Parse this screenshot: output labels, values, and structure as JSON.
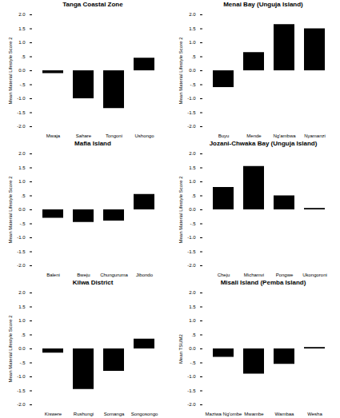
{
  "chart_data": [
    {
      "type": "bar",
      "title": "Tanga Coastal Zone",
      "y_label": "Mean Material Lifestyle Score 2",
      "categories": [
        "Mwaja",
        "Sahare",
        "Tongoni",
        "Ushongo"
      ],
      "values": [
        -0.1,
        -1.0,
        -1.35,
        0.45
      ],
      "color": "#000000",
      "ylim": [
        -2,
        2
      ],
      "yticks": [
        {
          "value": -2,
          "label": "-2.0"
        },
        {
          "value": -1.5,
          "label": "-1.5"
        },
        {
          "value": -1,
          "label": "-1.0"
        },
        {
          "value": -0.5,
          "label": "-.5"
        },
        {
          "value": 0,
          "label": "0.0"
        },
        {
          "value": 0.5,
          "label": ".5"
        },
        {
          "value": 1,
          "label": "1.0"
        },
        {
          "value": 1.5,
          "label": "1.5"
        },
        {
          "value": 2,
          "label": "2.0"
        }
      ]
    },
    {
      "type": "bar",
      "title": "Menai Bay (Unguja Island)",
      "y_label": "Mean Material Lifestyle Score 2",
      "categories": [
        "Buyu",
        "Mende",
        "Ng'ambwa",
        "Nyamanzi"
      ],
      "values": [
        -0.6,
        0.65,
        1.65,
        1.5
      ],
      "color": "#000000",
      "ylim": [
        -2,
        2
      ],
      "yticks": [
        {
          "value": -2,
          "label": "-2.0"
        },
        {
          "value": -1.5,
          "label": "-1.5"
        },
        {
          "value": -1,
          "label": "-1.0"
        },
        {
          "value": -0.5,
          "label": "-.5"
        },
        {
          "value": 0,
          "label": "0.0"
        },
        {
          "value": 0.5,
          "label": ".5"
        },
        {
          "value": 1,
          "label": "1.0"
        },
        {
          "value": 1.5,
          "label": "1.5"
        },
        {
          "value": 2,
          "label": "2.0"
        }
      ]
    },
    {
      "type": "bar",
      "title": "Mafia Island",
      "y_label": "Mean Material Lifestyle Score 2",
      "categories": [
        "Baleni",
        "Bweju",
        "Chunguruma",
        "Jibondo"
      ],
      "values": [
        -0.3,
        -0.45,
        -0.4,
        0.55
      ],
      "color": "#000000",
      "ylim": [
        -2,
        2
      ],
      "yticks": [
        {
          "value": -2,
          "label": "-2.0"
        },
        {
          "value": -1.5,
          "label": "-1.5"
        },
        {
          "value": -1,
          "label": "-1.0"
        },
        {
          "value": -0.5,
          "label": "-.5"
        },
        {
          "value": 0,
          "label": "0.0"
        },
        {
          "value": 0.5,
          "label": ".5"
        },
        {
          "value": 1,
          "label": "1.0"
        },
        {
          "value": 1.5,
          "label": "1.5"
        },
        {
          "value": 2,
          "label": "2.0"
        }
      ]
    },
    {
      "type": "bar",
      "title": "Jozani-Chwaka Bay (Unguja Island)",
      "y_label": "Mean Material Lifestyle Score 2",
      "categories": [
        "Cheju",
        "Michamvi",
        "Pongwe",
        "Ukongoroni"
      ],
      "values": [
        0.8,
        1.55,
        0.5,
        0.05
      ],
      "color": "#000000",
      "ylim": [
        -2,
        2
      ],
      "yticks": [
        {
          "value": -2,
          "label": "-2.0"
        },
        {
          "value": -1.5,
          "label": "-1.5"
        },
        {
          "value": -1,
          "label": "-1.0"
        },
        {
          "value": -0.5,
          "label": "-.5"
        },
        {
          "value": 0,
          "label": "0.0"
        },
        {
          "value": 0.5,
          "label": ".5"
        },
        {
          "value": 1,
          "label": "1.0"
        },
        {
          "value": 1.5,
          "label": "1.5"
        },
        {
          "value": 2,
          "label": "2.0"
        }
      ]
    },
    {
      "type": "bar",
      "title": "Kilwa District",
      "y_label": "Mean Material Lifestyle Score 2",
      "categories": [
        "Kiswere",
        "Rushungi",
        "Somanga",
        "Songosongo"
      ],
      "values": [
        -0.15,
        -1.45,
        -0.8,
        0.35
      ],
      "color": "#000000",
      "ylim": [
        -2,
        2
      ],
      "yticks": [
        {
          "value": -2,
          "label": "-2.0"
        },
        {
          "value": -1.5,
          "label": "-1.5"
        },
        {
          "value": -1,
          "label": "-1.0"
        },
        {
          "value": -0.5,
          "label": "-.5"
        },
        {
          "value": 0,
          "label": "0.0"
        },
        {
          "value": 0.5,
          "label": ".5"
        },
        {
          "value": 1,
          "label": "1.0"
        },
        {
          "value": 1.5,
          "label": "1.5"
        },
        {
          "value": 2,
          "label": "2.0"
        }
      ]
    },
    {
      "type": "bar",
      "title": "Misali Island (Pemba Island)",
      "y_label": "Mean TSUM2",
      "categories": [
        "Maziwa Ng'ombe",
        "Mwambe",
        "Wambaa",
        "Wesha"
      ],
      "values": [
        -0.3,
        -0.9,
        -0.55,
        0.05
      ],
      "color": "#000000",
      "ylim": [
        -2,
        2
      ],
      "yticks": [
        {
          "value": -2,
          "label": "-2.0"
        },
        {
          "value": -1.5,
          "label": "-1.5"
        },
        {
          "value": -1,
          "label": "-1.0"
        },
        {
          "value": -0.5,
          "label": "-.5"
        },
        {
          "value": 0,
          "label": "0.0"
        },
        {
          "value": 0.5,
          "label": ".5"
        },
        {
          "value": 1,
          "label": "1.0"
        },
        {
          "value": 1.5,
          "label": "1.5"
        },
        {
          "value": 2,
          "label": "2.0"
        }
      ]
    }
  ]
}
